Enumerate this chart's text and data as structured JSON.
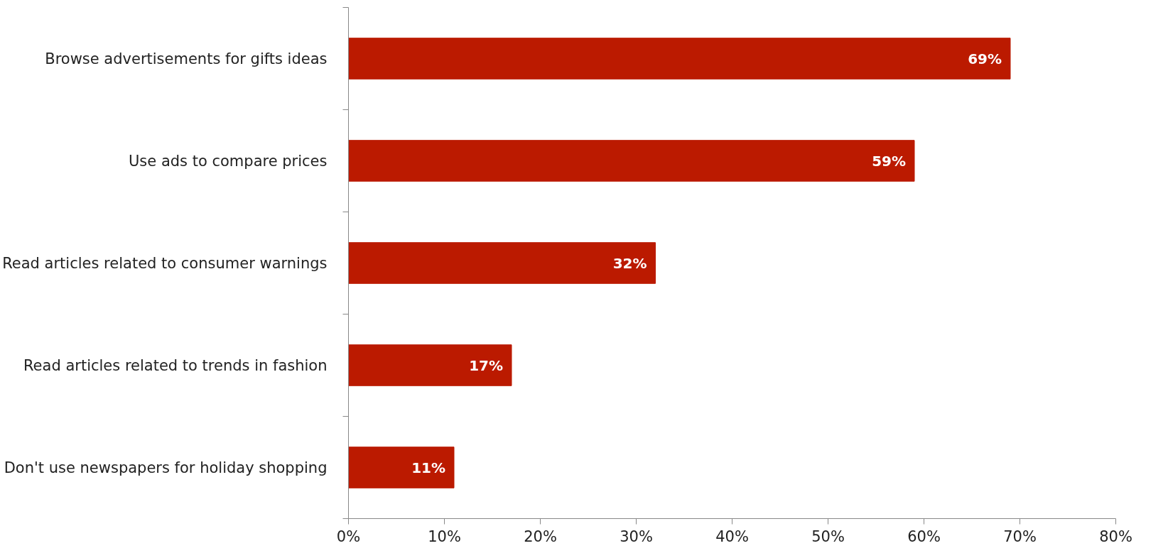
{
  "chart_data": {
    "type": "bar",
    "orientation": "horizontal",
    "categories": [
      "Browse advertisements for gifts ideas",
      "Use ads to compare prices",
      "Read articles related to consumer warnings",
      "Read articles related to trends in fashion",
      "Don't use newspapers for holiday shopping"
    ],
    "values": [
      69,
      59,
      32,
      17,
      11
    ],
    "value_labels": [
      "69%",
      "59%",
      "32%",
      "17%",
      "11%"
    ],
    "color": "#bb1a00",
    "xlim": [
      0,
      80
    ],
    "xticks": [
      {
        "value": 0,
        "label": "0%"
      },
      {
        "value": 10,
        "label": "10%"
      },
      {
        "value": 20,
        "label": "20%"
      },
      {
        "value": 30,
        "label": "30%"
      },
      {
        "value": 40,
        "label": "40%"
      },
      {
        "value": 50,
        "label": "50%"
      },
      {
        "value": 60,
        "label": "60%"
      },
      {
        "value": 70,
        "label": "70%"
      },
      {
        "value": 80,
        "label": "80%"
      }
    ],
    "grid": false
  }
}
